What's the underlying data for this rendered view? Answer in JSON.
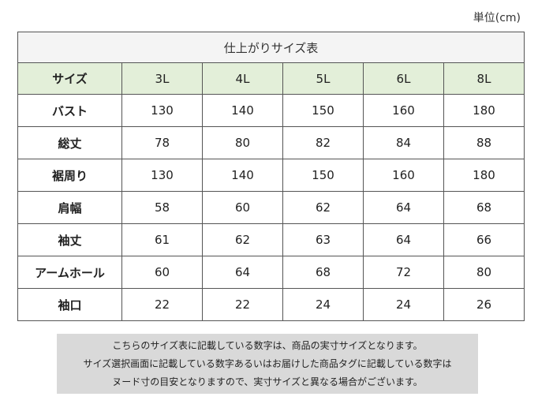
{
  "unit_label": "単位(cm)",
  "table": {
    "title": "仕上がりサイズ表",
    "header_label": "サイズ",
    "sizes": [
      "3L",
      "4L",
      "5L",
      "6L",
      "8L"
    ],
    "rows": [
      {
        "label": "バスト",
        "values": [
          "130",
          "140",
          "150",
          "160",
          "180"
        ]
      },
      {
        "label": "総丈",
        "values": [
          "78",
          "80",
          "82",
          "84",
          "88"
        ]
      },
      {
        "label": "裾周り",
        "values": [
          "130",
          "140",
          "150",
          "160",
          "180"
        ]
      },
      {
        "label": "肩幅",
        "values": [
          "58",
          "60",
          "62",
          "64",
          "68"
        ]
      },
      {
        "label": "袖丈",
        "values": [
          "61",
          "62",
          "63",
          "64",
          "66"
        ]
      },
      {
        "label": "アームホール",
        "values": [
          "60",
          "64",
          "68",
          "72",
          "80"
        ]
      },
      {
        "label": "袖口",
        "values": [
          "22",
          "22",
          "24",
          "24",
          "26"
        ]
      }
    ]
  },
  "note": {
    "lines": [
      "こちらのサイズ表に記載している数字は、商品の実寸サイズとなります。",
      "サイズ選択画面に記載している数字あるいはお届けした商品タグに記載している数字は",
      "ヌード寸の目安となりますので、実寸サイズと異なる場合がございます。"
    ]
  },
  "colors": {
    "header_bg": "#e3efd9",
    "title_bg": "#f4f4f4",
    "note_bg": "#d9d9d9",
    "border": "#555555"
  }
}
